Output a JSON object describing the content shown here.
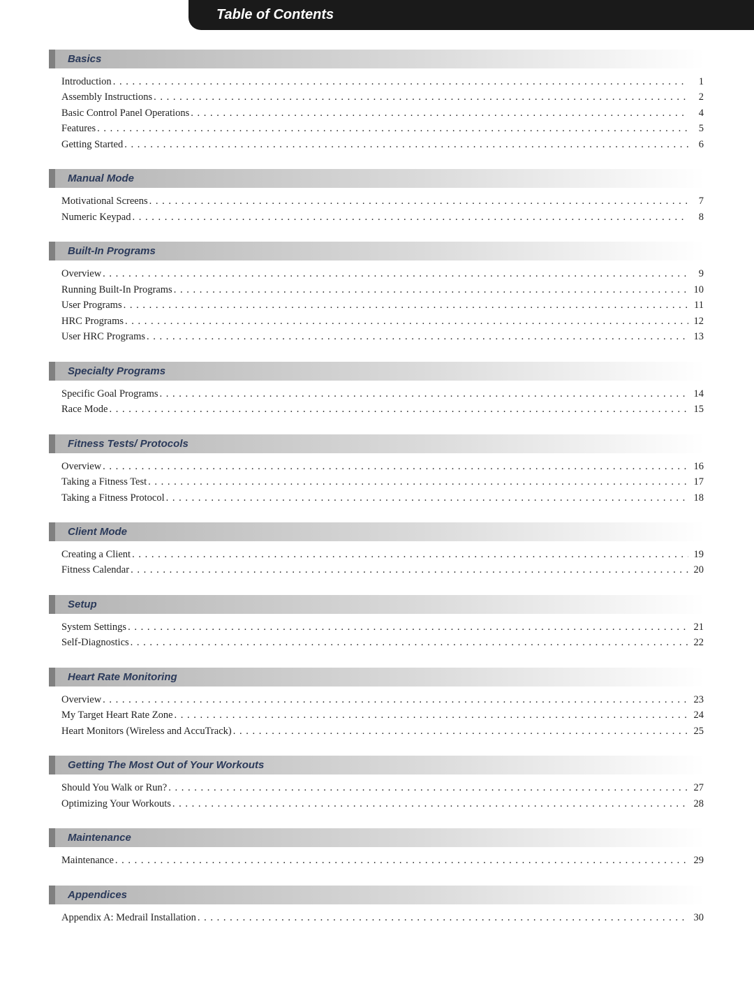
{
  "title": "Table of Contents",
  "colors": {
    "title_bar_bg": "#1a1a1a",
    "title_bar_text": "#ffffff",
    "section_text": "#2b3a5a",
    "section_border": "#808080",
    "section_grad_start": "#b4b4b4",
    "section_grad_mid": "#d9d9d9",
    "section_grad_end": "#ffffff",
    "entry_text": "#222222",
    "page_bg": "#ffffff"
  },
  "typography": {
    "title_font": "Arial",
    "title_size_pt": 15,
    "section_font": "Arial",
    "section_size_pt": 11,
    "entry_font": "Georgia",
    "entry_size_pt": 11
  },
  "sections": [
    {
      "title": "Basics",
      "entries": [
        {
          "label": "Introduction",
          "page": "1"
        },
        {
          "label": "Assembly Instructions",
          "page": "2"
        },
        {
          "label": "Basic Control Panel Operations",
          "page": "4"
        },
        {
          "label": "Features",
          "page": "5"
        },
        {
          "label": "Getting Started",
          "page": "6"
        }
      ]
    },
    {
      "title": "Manual Mode",
      "entries": [
        {
          "label": "Motivational Screens",
          "page": "7"
        },
        {
          "label": "Numeric Keypad",
          "page": "8"
        }
      ]
    },
    {
      "title": "Built-In Programs",
      "entries": [
        {
          "label": "Overview",
          "page": "9"
        },
        {
          "label": "Running Built-In Programs",
          "page": "10"
        },
        {
          "label": "User Programs",
          "page": "11"
        },
        {
          "label": "HRC Programs",
          "page": "12"
        },
        {
          "label": "User HRC Programs",
          "page": "13"
        }
      ]
    },
    {
      "title": "Specialty Programs",
      "entries": [
        {
          "label": "Specific Goal Programs",
          "page": "14"
        },
        {
          "label": "Race Mode",
          "page": "15"
        }
      ]
    },
    {
      "title": "Fitness Tests/ Protocols",
      "entries": [
        {
          "label": "Overview",
          "page": "16"
        },
        {
          "label": "Taking a Fitness Test",
          "page": "17"
        },
        {
          "label": "Taking a Fitness Protocol",
          "page": "18"
        }
      ]
    },
    {
      "title": "Client Mode",
      "entries": [
        {
          "label": "Creating a Client",
          "page": "19"
        },
        {
          "label": "Fitness Calendar",
          "page": "20"
        }
      ]
    },
    {
      "title": "Setup",
      "entries": [
        {
          "label": "System Settings",
          "page": "21"
        },
        {
          "label": "Self-Diagnostics",
          "page": "22"
        }
      ]
    },
    {
      "title": "Heart Rate Monitoring",
      "entries": [
        {
          "label": "Overview",
          "page": "23"
        },
        {
          "label": "My Target Heart Rate Zone",
          "page": "24"
        },
        {
          "label": "Heart Monitors (Wireless and AccuTrack)",
          "page": "25"
        }
      ]
    },
    {
      "title": "Getting The Most Out of Your Workouts",
      "entries": [
        {
          "label": "Should You Walk or Run?",
          "page": "27"
        },
        {
          "label": "Optimizing Your Workouts",
          "page": "28"
        }
      ]
    },
    {
      "title": "Maintenance",
      "entries": [
        {
          "label": "Maintenance",
          "page": "29"
        }
      ]
    },
    {
      "title": "Appendices",
      "entries": [
        {
          "label": "Appendix A: Medrail Installation",
          "page": "30"
        }
      ]
    }
  ]
}
